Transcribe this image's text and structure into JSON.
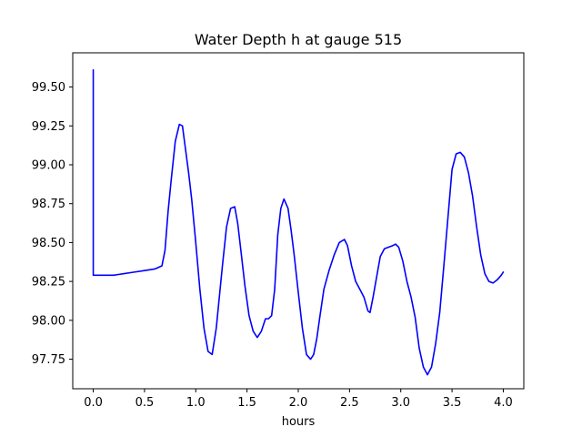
{
  "chart_data": {
    "type": "line",
    "title": "Water Depth h at gauge 515",
    "xlabel": "hours",
    "ylabel": "",
    "xlim": [
      -0.2,
      4.2
    ],
    "ylim": [
      97.56,
      99.72
    ],
    "grid": false,
    "x_ticks": [
      0.0,
      0.5,
      1.0,
      1.5,
      2.0,
      2.5,
      3.0,
      3.5,
      4.0
    ],
    "x_tick_labels": [
      "0.0",
      "0.5",
      "1.0",
      "1.5",
      "2.0",
      "2.5",
      "3.0",
      "3.5",
      "4.0"
    ],
    "y_ticks": [
      97.75,
      98.0,
      98.25,
      98.5,
      98.75,
      99.0,
      99.25,
      99.5
    ],
    "y_tick_labels": [
      "97.75",
      "98.00",
      "98.25",
      "98.50",
      "98.75",
      "99.00",
      "99.25",
      "99.50"
    ],
    "series": [
      {
        "color": "#0000ff",
        "x": [
          0.0,
          0.0,
          0.002,
          0.1,
          0.2,
          0.3,
          0.4,
          0.5,
          0.6,
          0.67,
          0.7,
          0.73,
          0.76,
          0.8,
          0.84,
          0.87,
          0.9,
          0.93,
          0.96,
          1.0,
          1.04,
          1.08,
          1.12,
          1.16,
          1.2,
          1.23,
          1.26,
          1.3,
          1.34,
          1.38,
          1.41,
          1.44,
          1.48,
          1.52,
          1.56,
          1.6,
          1.64,
          1.68,
          1.71,
          1.74,
          1.77,
          1.8,
          1.83,
          1.86,
          1.9,
          1.93,
          1.96,
          2.0,
          2.04,
          2.08,
          2.12,
          2.15,
          2.18,
          2.21,
          2.25,
          2.3,
          2.35,
          2.4,
          2.45,
          2.48,
          2.52,
          2.56,
          2.6,
          2.64,
          2.68,
          2.7,
          2.73,
          2.77,
          2.8,
          2.84,
          2.88,
          2.92,
          2.95,
          2.98,
          3.02,
          3.06,
          3.1,
          3.14,
          3.18,
          3.22,
          3.26,
          3.3,
          3.34,
          3.38,
          3.42,
          3.46,
          3.5,
          3.54,
          3.58,
          3.62,
          3.66,
          3.7,
          3.74,
          3.78,
          3.82,
          3.86,
          3.9,
          3.94,
          3.98,
          4.0
        ],
        "y": [
          99.61,
          98.29,
          98.29,
          98.29,
          98.29,
          98.3,
          98.31,
          98.32,
          98.33,
          98.35,
          98.45,
          98.7,
          98.9,
          99.15,
          99.26,
          99.25,
          99.1,
          98.95,
          98.78,
          98.5,
          98.2,
          97.95,
          97.8,
          97.78,
          97.95,
          98.15,
          98.35,
          98.6,
          98.72,
          98.73,
          98.62,
          98.45,
          98.22,
          98.03,
          97.93,
          97.89,
          97.93,
          98.01,
          98.01,
          98.03,
          98.2,
          98.55,
          98.72,
          98.78,
          98.72,
          98.58,
          98.42,
          98.18,
          97.95,
          97.78,
          97.75,
          97.78,
          97.88,
          98.02,
          98.2,
          98.32,
          98.42,
          98.5,
          98.52,
          98.48,
          98.35,
          98.25,
          98.2,
          98.15,
          98.06,
          98.05,
          98.15,
          98.3,
          98.41,
          98.46,
          98.47,
          98.48,
          98.49,
          98.47,
          98.38,
          98.25,
          98.15,
          98.02,
          97.82,
          97.7,
          97.65,
          97.7,
          97.85,
          98.05,
          98.35,
          98.66,
          98.97,
          99.07,
          99.08,
          99.05,
          98.95,
          98.8,
          98.6,
          98.42,
          98.3,
          98.25,
          98.24,
          98.26,
          98.29,
          98.31
        ]
      }
    ]
  }
}
